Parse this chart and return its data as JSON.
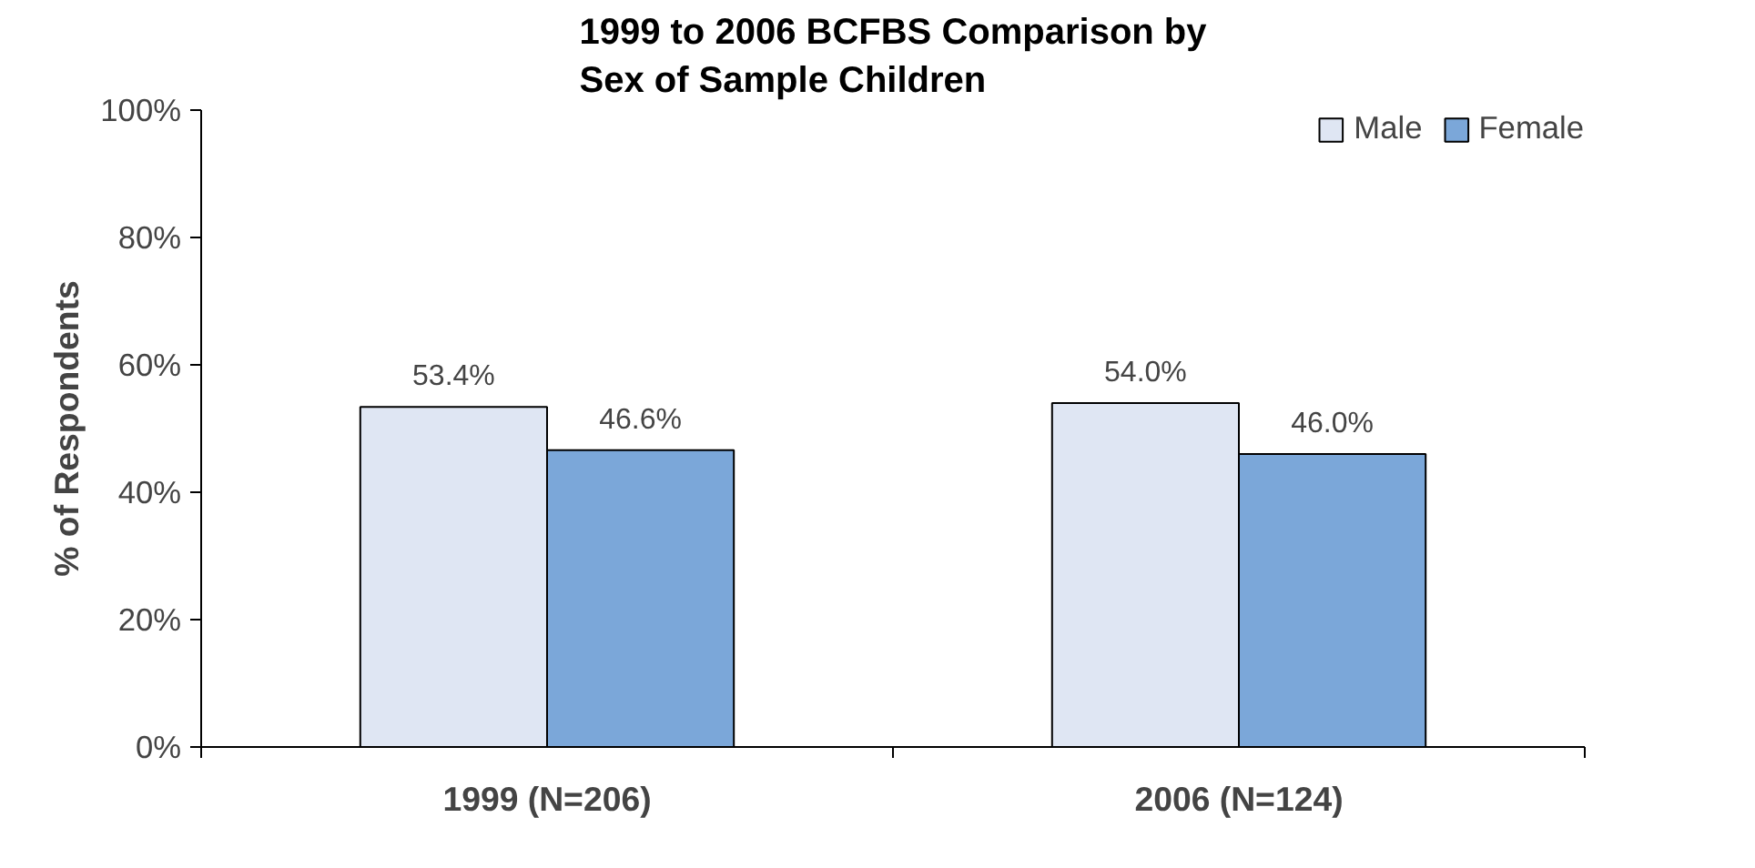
{
  "chart_data": {
    "type": "bar",
    "title": "1999 to 2006 BCFBS Comparison by\nSex of Sample Children",
    "ylabel": "% of Respondents",
    "categories": [
      "1999 (N=206)",
      "2006 (N=124)"
    ],
    "series": [
      {
        "name": "Male",
        "color": "#dfe6f3",
        "values": [
          53.4,
          54.0
        ],
        "value_labels": [
          "53.4%",
          "54.0%"
        ]
      },
      {
        "name": "Female",
        "color": "#7ba7d9",
        "values": [
          46.6,
          46.0
        ],
        "value_labels": [
          "46.6%",
          "46.0%"
        ]
      }
    ],
    "ylim": [
      0,
      100
    ],
    "yticks": [
      {
        "value": 0,
        "label": "0%"
      },
      {
        "value": 20,
        "label": "20%"
      },
      {
        "value": 40,
        "label": "40%"
      },
      {
        "value": 60,
        "label": "60%"
      },
      {
        "value": 80,
        "label": "80%"
      },
      {
        "value": 100,
        "label": "100%"
      }
    ],
    "grid": false,
    "legend": "top right"
  }
}
